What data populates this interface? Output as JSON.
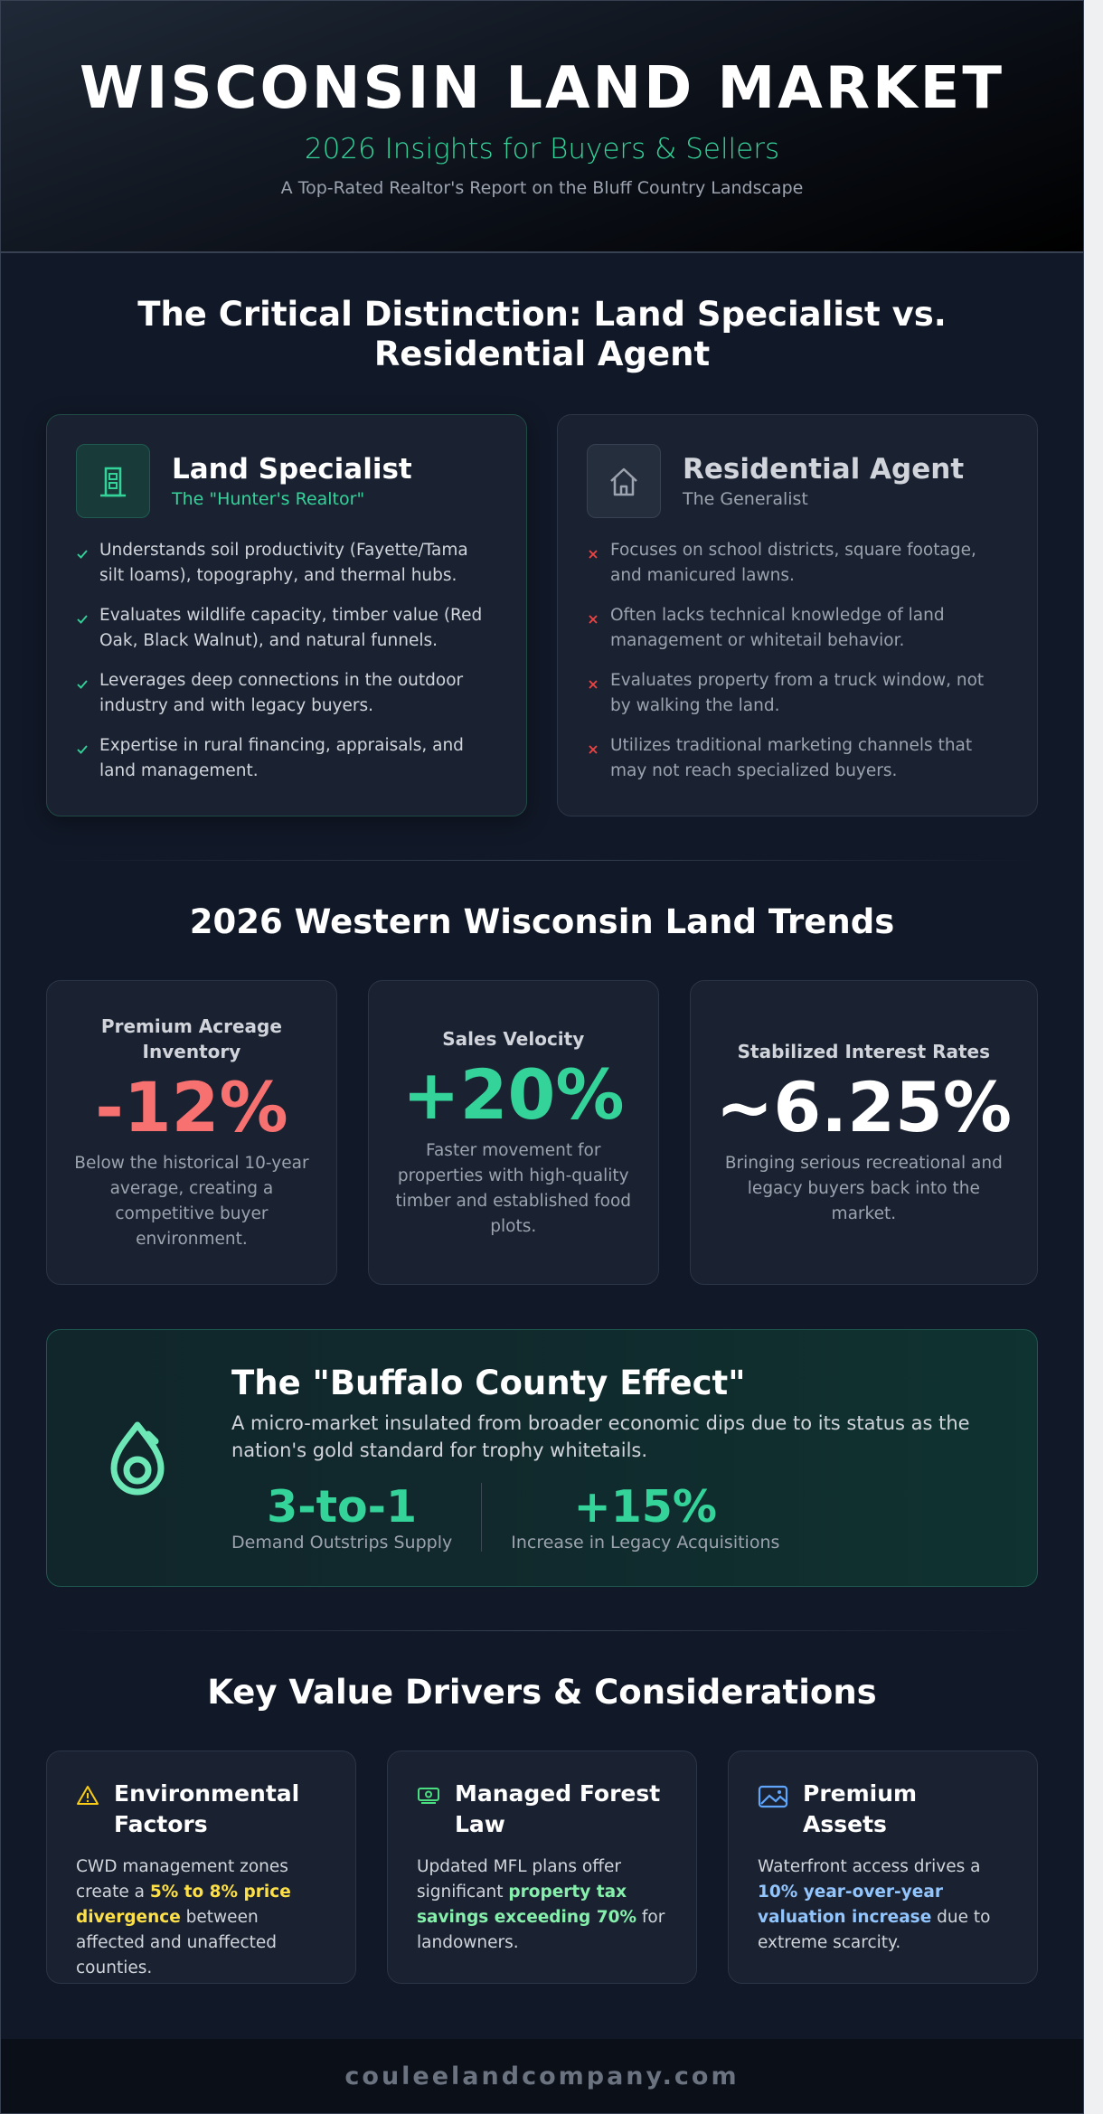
{
  "header": {
    "title": "WISCONSIN LAND MARKET",
    "subtitle": "2026 Insights for Buyers & Sellers",
    "tagline": "A Top-Rated Realtor's Report on the Bluff Country Landscape"
  },
  "comparison": {
    "title": "The Critical Distinction: Land Specialist vs. Residential Agent",
    "cards": [
      {
        "title": "Land Specialist",
        "subtitle": "The \"Hunter's Realtor\"",
        "items": [
          "Understands soil productivity (Fayette/Tama silt loams), topography, and thermal hubs.",
          "Evaluates wildlife capacity, timber value (Red Oak, Black Walnut), and natural funnels.",
          "Leverages deep connections in the outdoor industry and with legacy buyers.",
          "Expertise in rural financing, appraisals, and land management."
        ]
      },
      {
        "title": "Residential Agent",
        "subtitle": "The Generalist",
        "items": [
          "Focuses on school districts, square footage, and manicured lawns.",
          "Often lacks technical knowledge of land management or whitetail behavior.",
          "Evaluates property from a truck window, not by walking the land.",
          "Utilizes traditional marketing channels that may not reach specialized buyers."
        ]
      }
    ]
  },
  "trends": {
    "title": "2026 Western Wisconsin Land Trends",
    "stats": [
      {
        "label": "Premium Acreage Inventory",
        "value": "-12%",
        "description": "Below the historical 10-year average, creating a competitive buyer environment.",
        "color": "#f87171"
      },
      {
        "label": "Sales Velocity",
        "value": "+20%",
        "description": "Faster movement for properties with high-quality timber and established food plots.",
        "color": "#34d399"
      },
      {
        "label": "Stabilized Interest Rates",
        "value": "~6.25%",
        "description": "Bringing serious recreational and legacy buyers back into the market.",
        "color": "#ffffff"
      }
    ]
  },
  "feature": {
    "title": "The \"Buffalo County Effect\"",
    "description": "A micro-market insulated from broader economic dips due to its status as the nation's gold standard for trophy whitetails.",
    "stats": [
      {
        "value": "3-to-1",
        "label": "Demand Outstrips Supply"
      },
      {
        "value": "+15%",
        "label": "Increase in Legacy Acquisitions"
      }
    ]
  },
  "drivers": {
    "title": "Key Value Drivers & Considerations",
    "cards": [
      {
        "title": "Environmental Factors",
        "before": "CWD management zones create a ",
        "highlight": "5% to 8% price divergence",
        "after": " between affected and unaffected counties.",
        "color": "#fde047"
      },
      {
        "title": "Managed Forest Law",
        "before": "Updated MFL plans offer significant ",
        "highlight": "property tax savings exceeding 70%",
        "after": " for landowners.",
        "color": "#86efac"
      },
      {
        "title": "Premium Assets",
        "before": "Waterfront access drives a ",
        "highlight": "10% year-over-year valuation increase",
        "after": " due to extreme scarcity.",
        "color": "#93c5fd"
      }
    ]
  },
  "footer": {
    "url": "couleelandcompany.com"
  }
}
